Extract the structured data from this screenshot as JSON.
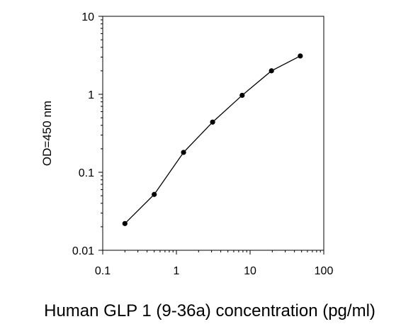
{
  "chart_data": {
    "type": "line",
    "title": "",
    "xlabel": "Human GLP 1 (9-36a) concentration (pg/ml)",
    "ylabel": "OD=450 nm",
    "x_scale": "log",
    "y_scale": "log",
    "xlim": [
      0.1,
      100
    ],
    "ylim": [
      0.01,
      10
    ],
    "x_ticks": [
      0.1,
      1,
      10,
      100
    ],
    "x_tick_labels": [
      "0.1",
      "1",
      "10",
      "100"
    ],
    "y_ticks": [
      0.01,
      0.1,
      1,
      10
    ],
    "y_tick_labels": [
      "0.01",
      "0.1",
      "1",
      "10"
    ],
    "grid": false,
    "legend": false,
    "series": [
      {
        "x": [
          0.2,
          0.5,
          1.25,
          3.1,
          7.8,
          19.5,
          48
        ],
        "y": [
          0.022,
          0.052,
          0.18,
          0.44,
          0.97,
          2.0,
          3.1
        ],
        "color": "#000000",
        "marker": "circle"
      }
    ]
  }
}
